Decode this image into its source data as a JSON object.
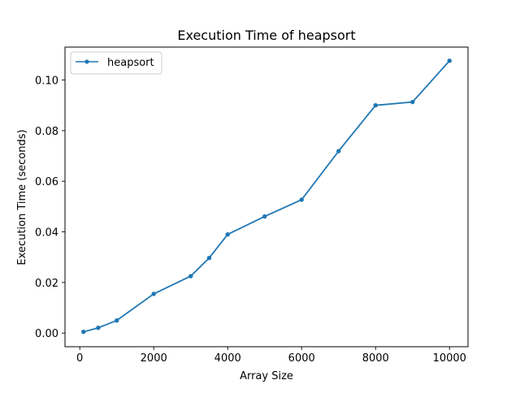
{
  "chart_data": {
    "type": "line",
    "title": "Execution Time of heapsort",
    "xlabel": "Array Size",
    "ylabel": "Execution Time (seconds)",
    "xlim": [
      -400,
      10500
    ],
    "ylim": [
      -0.005375,
      0.113
    ],
    "grid": false,
    "legend_position": "upper-left",
    "x_ticks": [
      0,
      2000,
      4000,
      6000,
      8000,
      10000
    ],
    "x_tick_labels": [
      "0",
      "2000",
      "4000",
      "6000",
      "8000",
      "10000"
    ],
    "y_ticks": [
      0.0,
      0.02,
      0.04,
      0.06,
      0.08,
      0.1
    ],
    "y_tick_labels": [
      "0.00",
      "0.02",
      "0.04",
      "0.06",
      "0.08",
      "0.10"
    ],
    "series": [
      {
        "name": "heapsort",
        "color": "#1f77b4",
        "marker": "dot",
        "x": [
          100,
          500,
          1000,
          2000,
          3000,
          3500,
          4000,
          5000,
          6000,
          7000,
          8000,
          9000,
          10000
        ],
        "y": [
          0.0005,
          0.0021,
          0.005,
          0.0155,
          0.0225,
          0.0297,
          0.039,
          0.0461,
          0.0527,
          0.0719,
          0.09,
          0.0913,
          0.1076
        ]
      }
    ]
  }
}
